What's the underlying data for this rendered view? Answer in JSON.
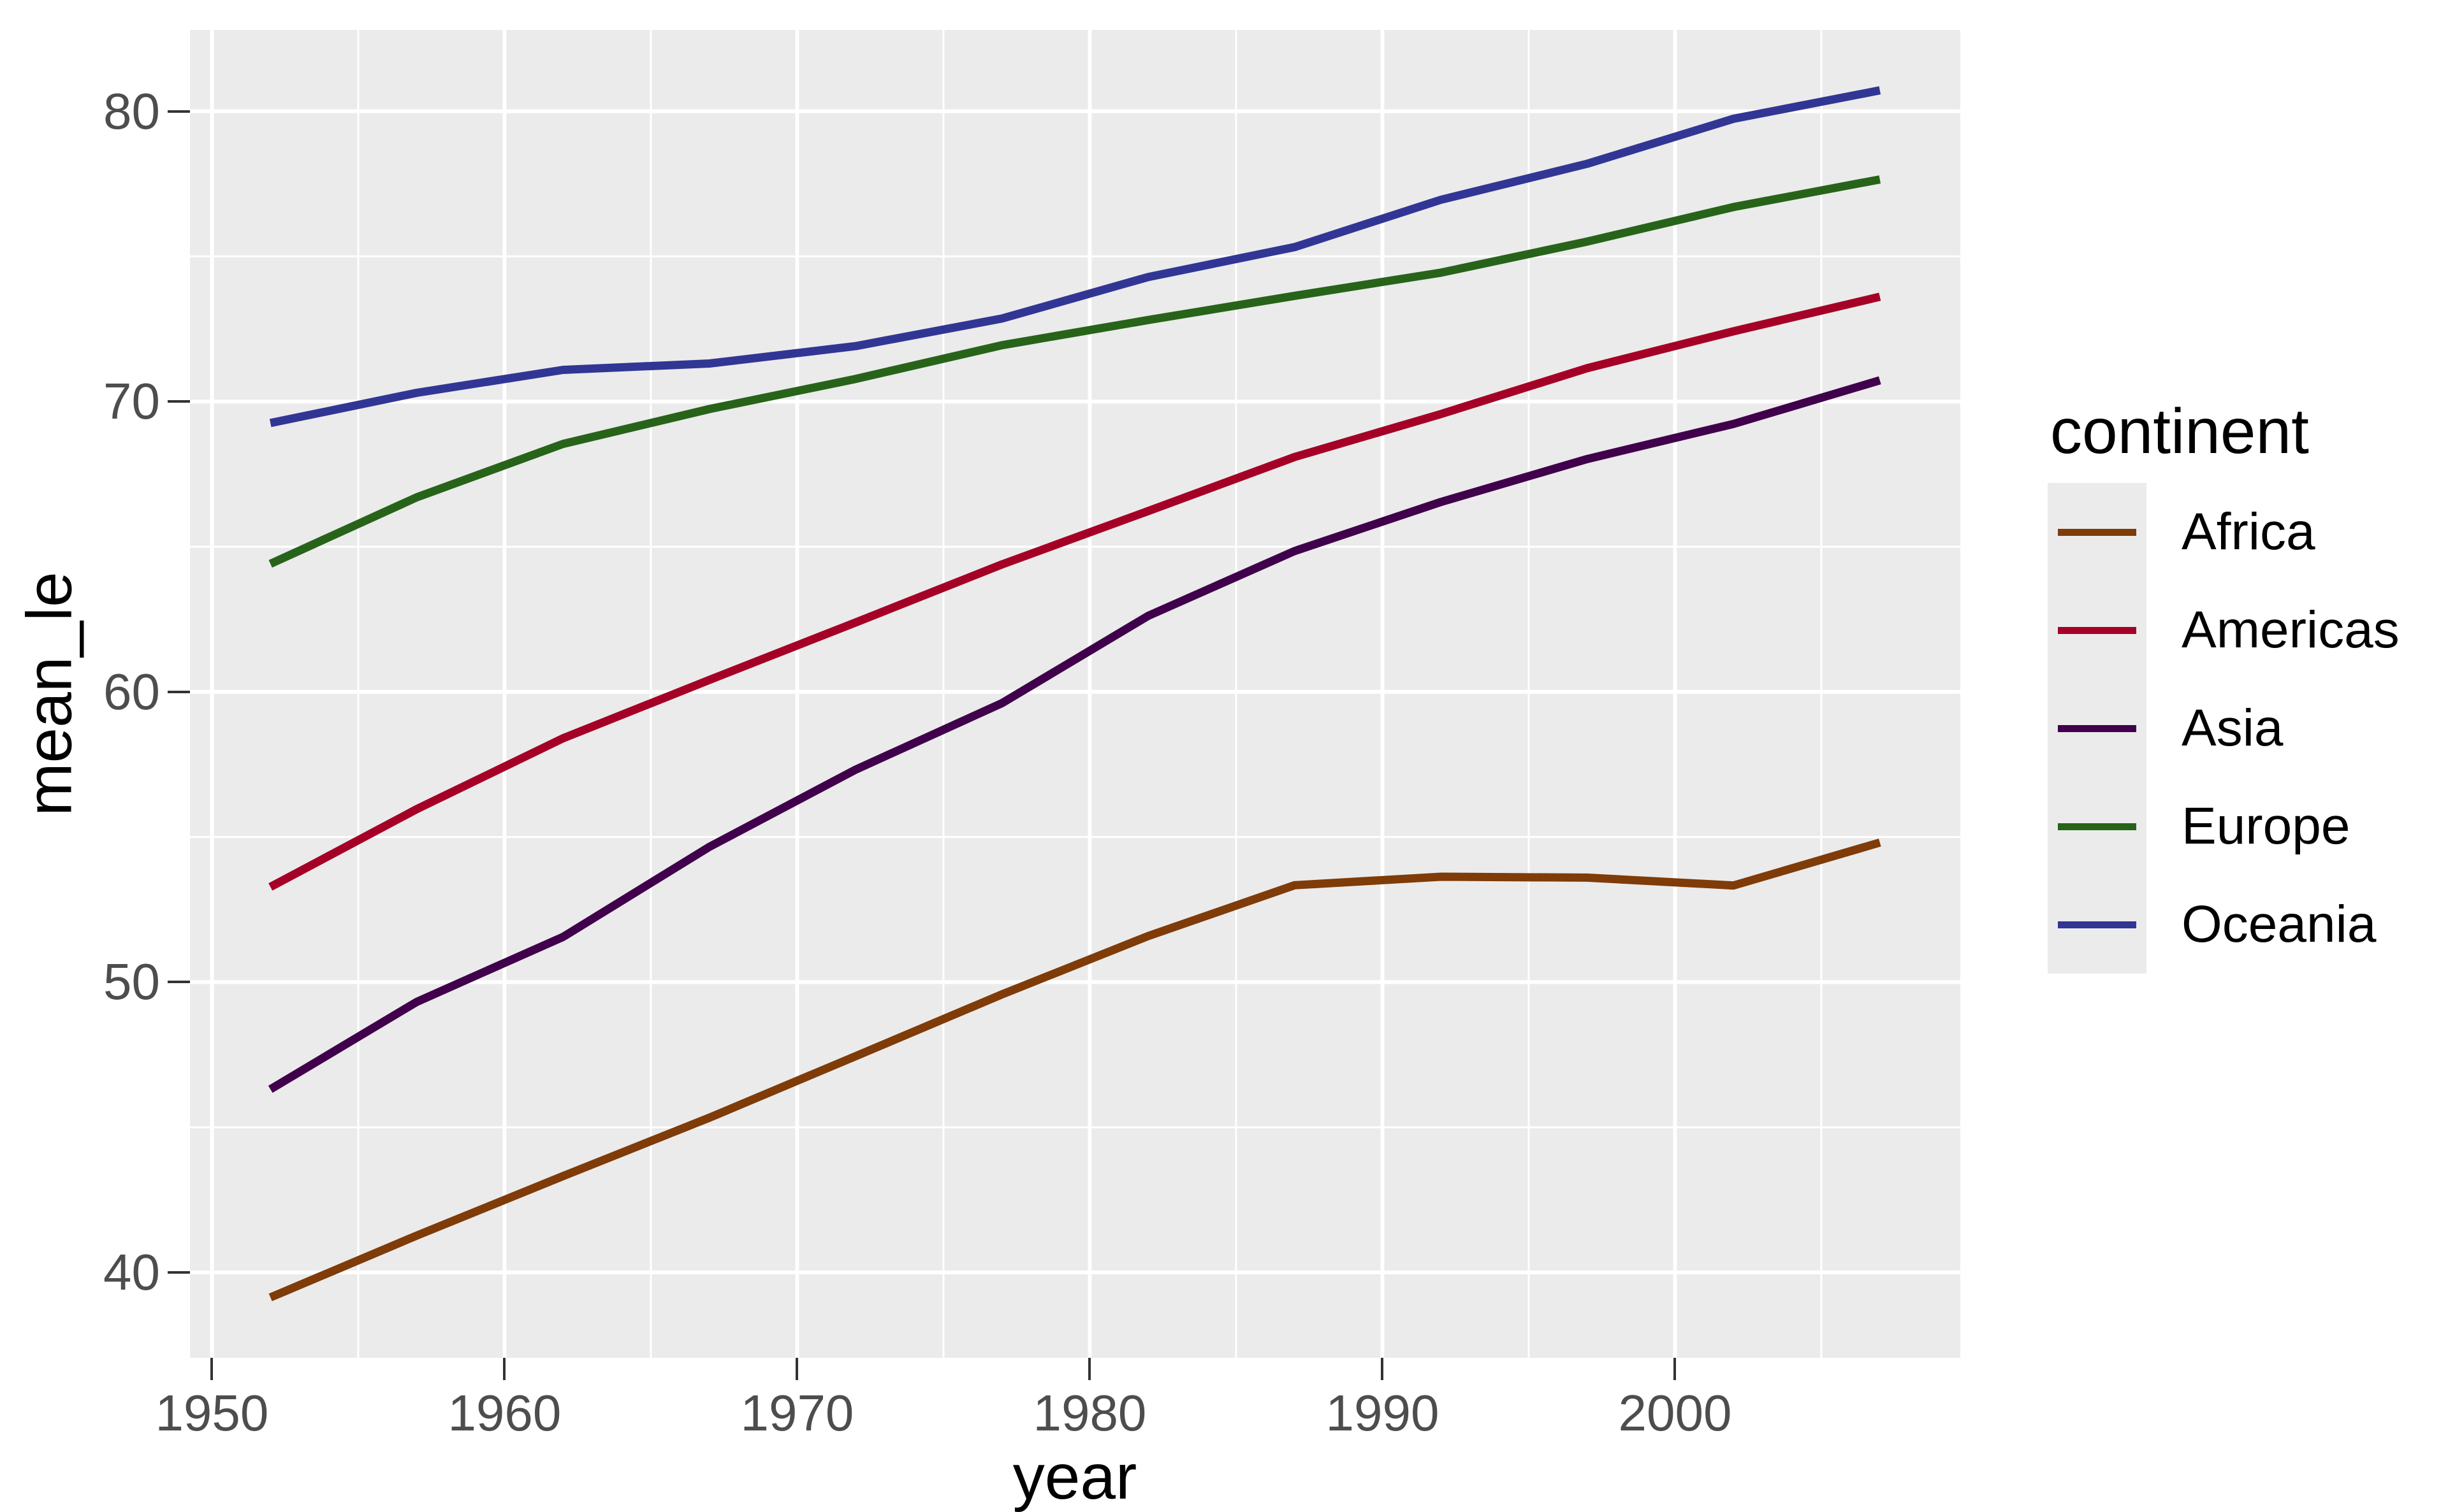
{
  "chart_data": {
    "type": "line",
    "title": "",
    "xlabel": "year",
    "ylabel": "mean_le",
    "legend_title": "continent",
    "legend_position": "right",
    "grid": true,
    "x": [
      1952,
      1957,
      1962,
      1967,
      1972,
      1977,
      1982,
      1987,
      1992,
      1997,
      2002,
      2007
    ],
    "series": [
      {
        "name": "Africa",
        "color": "#7F3B08",
        "values": [
          39.14,
          41.27,
          43.32,
          45.33,
          47.45,
          49.58,
          51.59,
          53.34,
          53.63,
          53.6,
          53.33,
          54.81
        ]
      },
      {
        "name": "Americas",
        "color": "#A50026",
        "values": [
          53.28,
          55.96,
          58.4,
          60.41,
          62.39,
          64.39,
          66.23,
          68.09,
          69.57,
          71.15,
          72.42,
          73.61
        ]
      },
      {
        "name": "Asia",
        "color": "#40004B",
        "values": [
          46.31,
          49.32,
          51.56,
          54.66,
          57.32,
          59.61,
          62.62,
          64.85,
          66.54,
          68.02,
          69.23,
          70.73
        ]
      },
      {
        "name": "Europe",
        "color": "#276419",
        "values": [
          64.41,
          66.7,
          68.54,
          69.74,
          70.78,
          71.94,
          72.81,
          73.64,
          74.44,
          75.51,
          76.7,
          77.65
        ]
      },
      {
        "name": "Oceania",
        "color": "#313695",
        "values": [
          69.26,
          70.3,
          71.09,
          71.31,
          71.91,
          72.86,
          74.29,
          75.32,
          76.95,
          78.19,
          79.74,
          80.72
        ]
      }
    ],
    "x_domain": [
      1949.25,
      2009.75
    ],
    "y_domain": [
      37.06,
      82.8
    ],
    "x_ticks": [
      1950,
      1960,
      1970,
      1980,
      1990,
      2000
    ],
    "x_minor_ticks": [
      1955,
      1965,
      1975,
      1985,
      1995,
      2005
    ],
    "y_ticks": [
      40,
      50,
      60,
      70,
      80
    ],
    "y_minor_ticks": [
      45,
      55,
      65,
      75
    ],
    "panel_bg": "#EBEBEB",
    "grid_color": "#FFFFFF",
    "tick_color": "#333333",
    "tick_label_color": "#4D4D4D",
    "line_width": 13
  }
}
